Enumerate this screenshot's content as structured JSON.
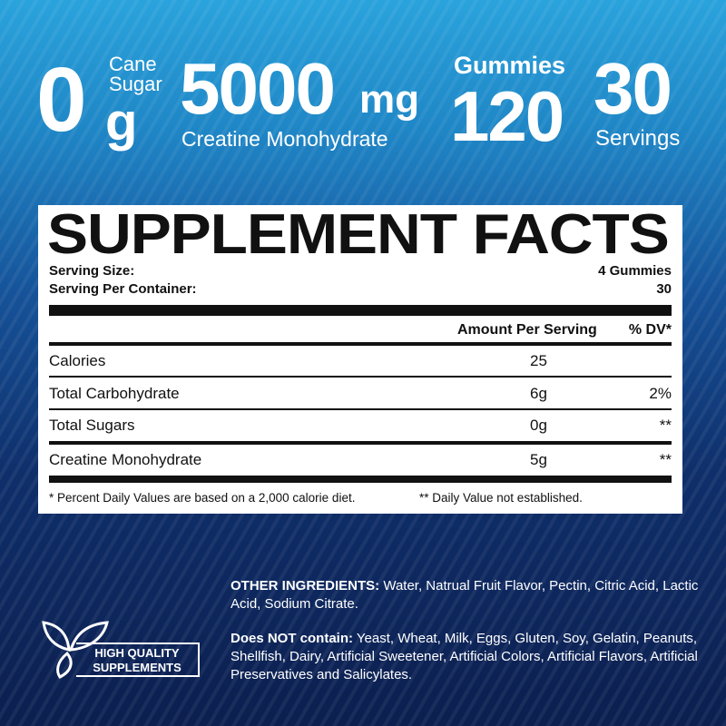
{
  "header": {
    "sugar_value": "0",
    "sugar_unit": "g",
    "sugar_label_1": "Cane",
    "sugar_label_2": "Sugar",
    "creatine_value": "5000",
    "creatine_unit": "mg",
    "creatine_label": "Creatine Monohydrate",
    "gummies_label": "Gummies",
    "gummies_value": "120",
    "servings_value": "30",
    "servings_label": "Servings"
  },
  "facts": {
    "title": "SUPPLEMENT FACTS",
    "serving_size_label": "Serving Size:",
    "serving_size_value": "4 Gummies",
    "per_container_label": "Serving Per Container:",
    "per_container_value": "30",
    "col_amount": "Amount Per Serving",
    "col_dv": "% DV*",
    "rows": [
      {
        "name": "Calories",
        "amount": "25",
        "dv": ""
      },
      {
        "name": "Total Carbohydrate",
        "amount": "6g",
        "dv": "2%"
      },
      {
        "name": "Total Sugars",
        "amount": "0g",
        "dv": "**"
      },
      {
        "name": "Creatine Monohydrate",
        "amount": "5g",
        "dv": "**"
      }
    ],
    "footnote_1": "* Percent Daily Values are based on a 2,000 calorie diet.",
    "footnote_2": "** Daily Value not established."
  },
  "ingredients": {
    "other_label": "OTHER INGREDIENTS:",
    "other_text": " Water, Natrual Fruit Flavor, Pectin, Citric Acid, Lactic Acid, Sodium Citrate.",
    "not_label": "Does NOT contain:",
    "not_text": " Yeast, Wheat, Milk, Eggs, Gluten, Soy, Gelatin, Peanuts, Shellfish, Dairy, Artificial Sweetener, Artificial Colors, Artificial Flavors, Artificial Preservatives and Salicylates."
  },
  "badge": {
    "line1": "HIGH QUALITY",
    "line2": "SUPPLEMENTS",
    "icon": "leaf-icon"
  }
}
